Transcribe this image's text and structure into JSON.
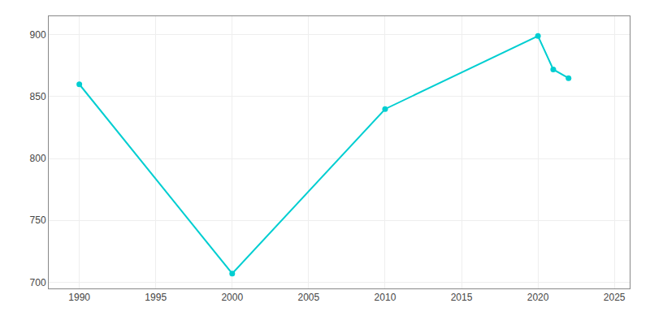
{
  "chart_data": {
    "type": "line",
    "x": [
      1990,
      2000,
      2010,
      2020,
      2021,
      2022
    ],
    "values": [
      860,
      707,
      840,
      899,
      872,
      865
    ],
    "color": "#00CED1",
    "marker": "circle",
    "xlim": [
      1988,
      2026
    ],
    "ylim": [
      695,
      915
    ],
    "xticks": [
      1990,
      1995,
      2000,
      2005,
      2010,
      2015,
      2020,
      2025
    ],
    "yticks": [
      700,
      750,
      800,
      850,
      900
    ],
    "grid": true
  }
}
